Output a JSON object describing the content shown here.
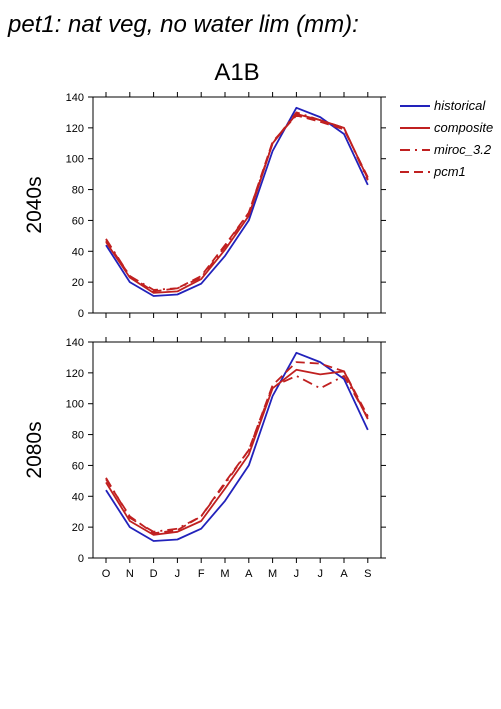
{
  "title": "pet1: nat veg, no water lim (mm):",
  "scenario": "A1B",
  "legend": [
    "historical",
    "composite",
    "miroc_3.2",
    "pcm1"
  ],
  "colors": {
    "historical": "#2222bb",
    "composite": "#c02020",
    "miroc_3.2": "#c02020",
    "pcm1": "#c02020"
  },
  "chart_data": [
    {
      "type": "line",
      "row_label": "2040s",
      "categories": [
        "O",
        "N",
        "D",
        "J",
        "F",
        "M",
        "A",
        "M",
        "J",
        "J",
        "A",
        "S"
      ],
      "ylim": [
        0,
        140
      ],
      "yticks": [
        0,
        20,
        40,
        60,
        80,
        100,
        120,
        140
      ],
      "series": [
        {
          "name": "historical",
          "style": "solid",
          "values": [
            44,
            20,
            11,
            12,
            19,
            37,
            60,
            105,
            133,
            127,
            116,
            83
          ]
        },
        {
          "name": "composite",
          "style": "solid",
          "values": [
            46,
            23,
            13,
            14,
            22,
            41,
            63,
            110,
            129,
            125,
            120,
            87
          ]
        },
        {
          "name": "miroc_3.2",
          "style": "dashdot",
          "values": [
            48,
            24,
            15,
            16,
            23,
            43,
            65,
            110,
            130,
            125,
            120,
            86
          ]
        },
        {
          "name": "pcm1",
          "style": "dashed",
          "values": [
            47,
            24,
            14,
            16,
            24,
            44,
            65,
            111,
            128,
            124,
            119,
            88
          ]
        }
      ]
    },
    {
      "type": "line",
      "row_label": "2080s",
      "categories": [
        "O",
        "N",
        "D",
        "J",
        "F",
        "M",
        "A",
        "M",
        "J",
        "J",
        "A",
        "S"
      ],
      "xlabels": [
        "O",
        "N",
        "D",
        "J",
        "F",
        "M",
        "A",
        "M",
        "J",
        "J",
        "A",
        "S"
      ],
      "ylim": [
        0,
        140
      ],
      "yticks": [
        0,
        20,
        40,
        60,
        80,
        100,
        120,
        140
      ],
      "series": [
        {
          "name": "historical",
          "style": "solid",
          "values": [
            44,
            20,
            11,
            12,
            19,
            37,
            60,
            105,
            133,
            127,
            116,
            83
          ]
        },
        {
          "name": "composite",
          "style": "solid",
          "values": [
            49,
            24,
            15,
            17,
            24,
            45,
            67,
            110,
            122,
            119,
            121,
            90
          ]
        },
        {
          "name": "miroc_3.2",
          "style": "dashdot",
          "values": [
            52,
            26,
            17,
            19,
            27,
            48,
            70,
            111,
            118,
            110,
            118,
            91
          ]
        },
        {
          "name": "pcm1",
          "style": "dashed",
          "values": [
            51,
            27,
            16,
            18,
            27,
            49,
            70,
            112,
            127,
            126,
            121,
            92
          ]
        }
      ]
    }
  ]
}
